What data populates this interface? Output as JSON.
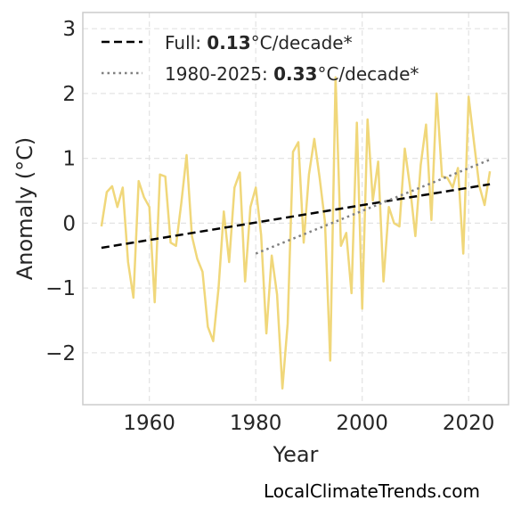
{
  "chart_data": {
    "type": "line",
    "title": "",
    "xlabel": "Year",
    "ylabel": "Anomaly (°C)",
    "xlim": [
      1947.5,
      2027.5
    ],
    "ylim": [
      -2.8,
      3.25
    ],
    "x_ticks": [
      1960,
      1980,
      2000,
      2020
    ],
    "y_ticks": [
      -2,
      -1,
      0,
      1,
      2,
      3
    ],
    "y_tick_labels": [
      "−2",
      "−1",
      "0",
      "1",
      "2",
      "3"
    ],
    "grid": true,
    "legend_position": "top-left",
    "series": [
      {
        "color": "#f0d77a",
        "x": [
          1951,
          1952,
          1953,
          1954,
          1955,
          1956,
          1957,
          1958,
          1959,
          1960,
          1961,
          1962,
          1963,
          1964,
          1965,
          1966,
          1967,
          1968,
          1969,
          1970,
          1971,
          1972,
          1973,
          1974,
          1975,
          1976,
          1977,
          1978,
          1979,
          1980,
          1981,
          1982,
          1983,
          1984,
          1985,
          1986,
          1987,
          1988,
          1989,
          1990,
          1991,
          1992,
          1993,
          1994,
          1995,
          1996,
          1997,
          1998,
          1999,
          2000,
          2001,
          2002,
          2003,
          2004,
          2005,
          2006,
          2007,
          2008,
          2009,
          2010,
          2011,
          2012,
          2013,
          2014,
          2015,
          2016,
          2017,
          2018,
          2019,
          2020,
          2021,
          2022,
          2023,
          2024
        ],
        "values": [
          -0.05,
          0.48,
          0.57,
          0.25,
          0.55,
          -0.6,
          -1.15,
          0.65,
          0.4,
          0.25,
          -1.22,
          0.75,
          0.72,
          -0.3,
          -0.35,
          0.3,
          1.05,
          -0.2,
          -0.55,
          -0.75,
          -1.6,
          -1.82,
          -1.0,
          0.18,
          -0.6,
          0.55,
          0.78,
          -0.9,
          0.25,
          0.55,
          -0.18,
          -1.7,
          -0.5,
          -1.1,
          -2.55,
          -1.55,
          1.1,
          1.25,
          -0.3,
          0.75,
          1.3,
          0.7,
          0.02,
          -2.12,
          2.25,
          -0.35,
          -0.15,
          -1.08,
          1.55,
          -1.32,
          1.6,
          0.35,
          0.95,
          -0.9,
          0.25,
          0.0,
          -0.05,
          1.15,
          0.55,
          -0.2,
          0.9,
          1.52,
          0.05,
          2.0,
          0.72,
          0.7,
          0.55,
          0.85,
          -0.47,
          1.95,
          1.25,
          0.58,
          0.28,
          0.8
        ]
      },
      {
        "name": "Full",
        "style": "dashed",
        "color": "#000000",
        "x": [
          1951,
          2024
        ],
        "values": [
          -0.38,
          0.6
        ]
      },
      {
        "name": "1980-2025",
        "style": "dotted",
        "color": "#808080",
        "x": [
          1980,
          2024
        ],
        "values": [
          -0.47,
          0.98
        ]
      }
    ],
    "legend": [
      {
        "prefix": "Full: ",
        "value": "0.13",
        "suffix": "°C/decade*"
      },
      {
        "prefix": "1980-2025: ",
        "value": "0.33",
        "suffix": "°C/decade*"
      }
    ]
  },
  "credit": "LocalClimateTrends.com"
}
